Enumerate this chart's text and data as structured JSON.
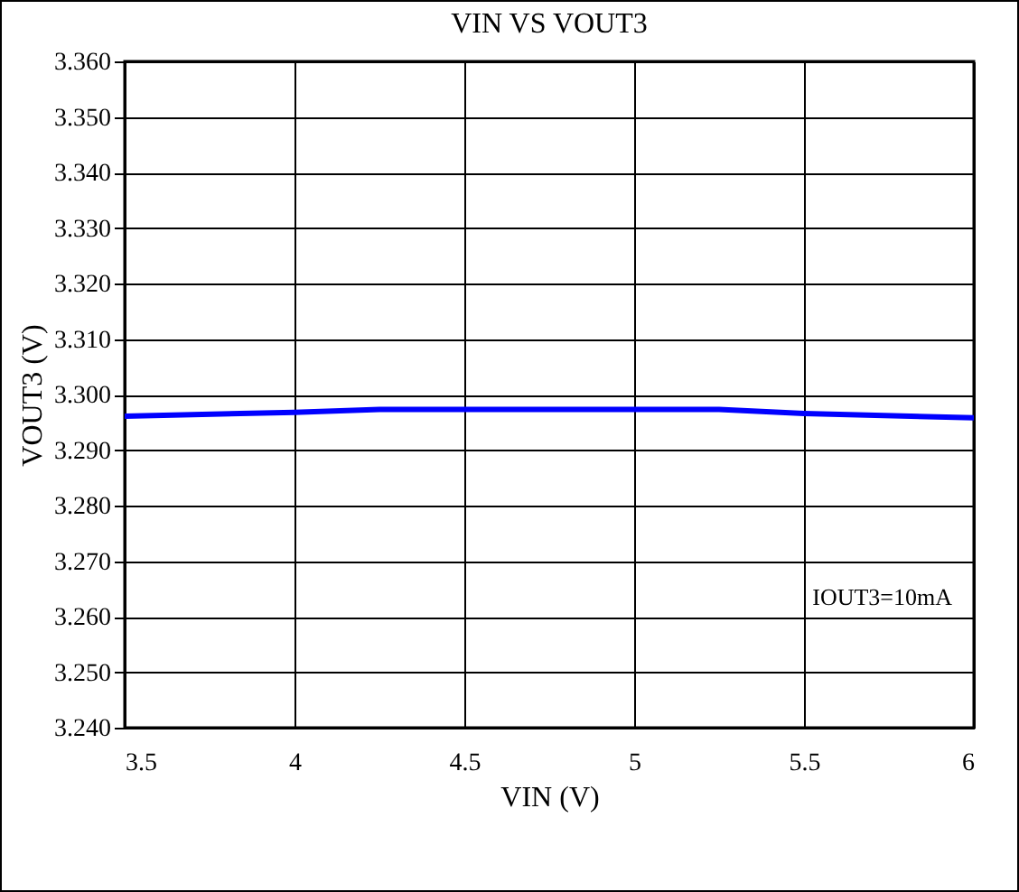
{
  "chart_data": {
    "type": "line",
    "title": "VIN VS VOUT3",
    "xlabel": "VIN (V)",
    "ylabel": "VOUT3 (V)",
    "x": [
      3.5,
      4,
      4.25,
      4.5,
      5,
      5.25,
      5.5,
      6
    ],
    "series": [
      {
        "color": "#0000ff",
        "values": [
          3.2961,
          3.2968,
          3.2973,
          3.2973,
          3.2973,
          3.2973,
          3.2966,
          3.2958
        ]
      }
    ],
    "xlim": [
      3.5,
      6
    ],
    "xticks": [
      3.5,
      4,
      4.5,
      5,
      5.5,
      6
    ],
    "ylim": [
      3.24,
      3.36
    ],
    "yticks": [
      {
        "value": 3.24,
        "label": "3.240"
      },
      {
        "value": 3.25,
        "label": "3.250"
      },
      {
        "value": 3.26,
        "label": "3.260"
      },
      {
        "value": 3.27,
        "label": "3.270"
      },
      {
        "value": 3.28,
        "label": "3.280"
      },
      {
        "value": 3.29,
        "label": "3.290"
      },
      {
        "value": 3.3,
        "label": "3.300"
      },
      {
        "value": 3.31,
        "label": "3.310"
      },
      {
        "value": 3.32,
        "label": "3.320"
      },
      {
        "value": 3.33,
        "label": "3.330"
      },
      {
        "value": 3.34,
        "label": "3.340"
      },
      {
        "value": 3.35,
        "label": "3.350"
      },
      {
        "value": 3.36,
        "label": "3.360"
      }
    ],
    "grid": true,
    "legend": false,
    "marker": "none",
    "line_style": "solid",
    "annotations": [
      "IOUT3=10mA"
    ]
  }
}
